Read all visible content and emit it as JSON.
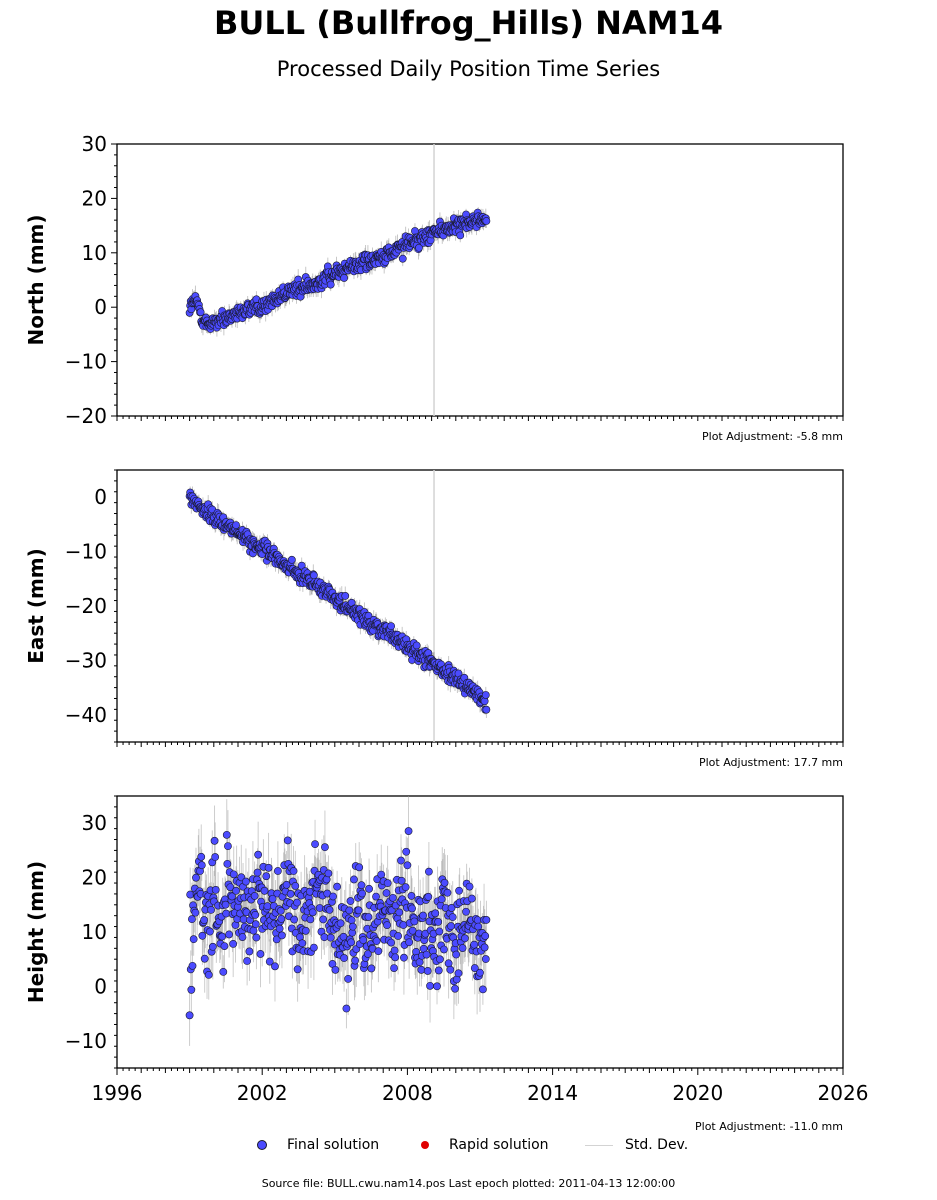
{
  "header": {
    "title": "BULL (Bullfrog_Hills) NAM14",
    "subtitle": "Processed Daily Position Time Series"
  },
  "legend": {
    "final_label": "Final solution",
    "rapid_label": "Rapid solution",
    "std_label": "Std. Dev."
  },
  "footer": {
    "source": "Source file: BULL.cwu.nam14.pos  Last epoch plotted: 2011-04-13 12:00:00"
  },
  "colors": {
    "final": "#4b4bff",
    "rapid": "#e00000",
    "std_dev": "#d3d3d3",
    "marker_edge": "#1a1a2e",
    "vline": "#d3d3d3"
  },
  "chart_data": [
    {
      "type": "scatter",
      "ylabel": "North (mm)",
      "ylim": [
        -20,
        30
      ],
      "yticks": [
        -20,
        -10,
        0,
        10,
        20,
        30
      ],
      "xlim": [
        1996,
        2026
      ],
      "vertical_line_year": 2009.1,
      "plot_adjustment": "Plot Adjustment: -5.8 mm",
      "series": [
        {
          "x": [
            1999.0,
            1999.3,
            1999.6,
            2000.0,
            2000.5,
            2001.0,
            2001.5,
            2002.0,
            2002.5,
            2003.0,
            2003.5,
            2004.0,
            2004.5,
            2005.0,
            2005.5,
            2006.0,
            2006.5,
            2007.0,
            2007.5,
            2008.0,
            2008.5,
            2009.0,
            2009.5,
            2010.0,
            2010.5,
            2011.0,
            2011.28
          ],
          "y": [
            0.0,
            1.0,
            -3.0,
            -3.0,
            -2.0,
            -1.5,
            -0.5,
            0.5,
            1.5,
            2.5,
            3.5,
            4.0,
            5.0,
            6.0,
            7.0,
            8.0,
            8.5,
            9.5,
            10.0,
            11.5,
            12.5,
            13.5,
            14.5,
            15.0,
            15.5,
            16.0,
            16.0
          ]
        }
      ]
    },
    {
      "type": "scatter",
      "ylabel": "East (mm)",
      "ylim": [
        -45,
        5
      ],
      "yticks": [
        -40,
        -30,
        -20,
        -10,
        0
      ],
      "xlim": [
        1996,
        2026
      ],
      "vertical_line_year": 2009.1,
      "plot_adjustment": "Plot Adjustment: 17.7 mm",
      "series": [
        {
          "x": [
            1999.0,
            1999.5,
            2000.0,
            2000.5,
            2001.0,
            2001.5,
            2002.0,
            2002.5,
            2003.0,
            2003.5,
            2004.0,
            2004.5,
            2005.0,
            2005.5,
            2006.0,
            2006.5,
            2007.0,
            2007.5,
            2008.0,
            2008.5,
            2009.0,
            2009.5,
            2010.0,
            2010.5,
            2011.0,
            2011.28
          ],
          "y": [
            0.0,
            -2.0,
            -3.5,
            -5.0,
            -6.5,
            -8.0,
            -9.5,
            -11.0,
            -12.5,
            -14.0,
            -15.5,
            -17.0,
            -18.5,
            -20.0,
            -21.5,
            -23.0,
            -24.5,
            -26.0,
            -27.5,
            -29.0,
            -30.5,
            -32.0,
            -33.5,
            -35.0,
            -36.5,
            -38.0
          ]
        }
      ]
    },
    {
      "type": "scatter",
      "ylabel": "Height (mm)",
      "ylim": [
        -15,
        35
      ],
      "yticks": [
        -10,
        0,
        10,
        20,
        30
      ],
      "xlim": [
        1996,
        2026
      ],
      "xticks": [
        1996,
        2002,
        2008,
        2014,
        2020,
        2026
      ],
      "vertical_line_year": null,
      "plot_adjustment": "Plot Adjustment: -11.0 mm",
      "series": [
        {
          "x": [
            1999.0,
            1999.2,
            1999.4,
            1999.6,
            1999.8,
            2000.0,
            2000.3,
            2000.6,
            2001.0,
            2001.5,
            2002.0,
            2002.5,
            2003.0,
            2003.5,
            2004.0,
            2004.5,
            2005.0,
            2005.5,
            2006.0,
            2006.5,
            2007.0,
            2007.5,
            2008.0,
            2008.5,
            2009.0,
            2009.5,
            2010.0,
            2010.5,
            2011.0,
            2011.28
          ],
          "y": [
            5.0,
            15.0,
            25.0,
            12.0,
            8.0,
            18.0,
            10.0,
            20.0,
            14.0,
            11.0,
            16.0,
            13.0,
            17.0,
            12.0,
            14.0,
            18.0,
            10.0,
            9.0,
            15.0,
            11.0,
            14.0,
            12.0,
            16.0,
            10.0,
            11.0,
            13.0,
            9.0,
            12.0,
            10.0,
            8.0
          ]
        }
      ]
    }
  ]
}
